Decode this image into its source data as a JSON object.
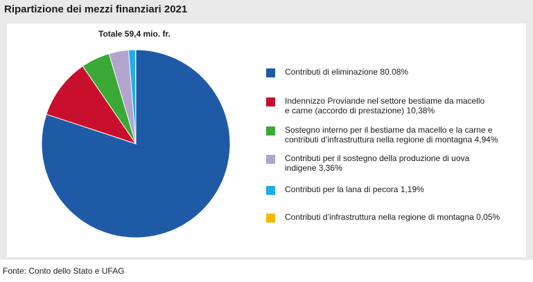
{
  "title": "Ripartizione dei mezzi finanziari 2021",
  "total_label": "Totale 59,4 mio. fr.",
  "source": "Fonte: Conto dello Stato e UFAG",
  "chart_data": {
    "type": "pie",
    "title": "Ripartizione dei mezzi finanziari 2021",
    "subtitle": "Totale 59,4 mio. fr.",
    "legend_position": "right",
    "slices": [
      {
        "label": "Contributi di eliminazione 80.08%",
        "value": 80.08,
        "color": "#1f5aa6"
      },
      {
        "label": "Indennizzo Proviande nel settore bestiame da macello\ne carne (accordo di prestazione) 10,38%",
        "value": 10.38,
        "color": "#c8102e"
      },
      {
        "label": "Sostegno interno per il bestiame da macello e la carne e\ncontributi d’infrastruttura nella regione di montagna  4,94%",
        "value": 4.94,
        "color": "#3aa935"
      },
      {
        "label": "Contributi per il sostegno della produzione di uova\nindigene  3,36%",
        "value": 3.36,
        "color": "#b3a3cf"
      },
      {
        "label": "Contributi per la lana di pecora  1,19%",
        "value": 1.19,
        "color": "#1eaee8"
      },
      {
        "label": "Contributi d’infrastruttura nella regione di montagna 0,05%",
        "value": 0.05,
        "color": "#f5b800"
      }
    ]
  }
}
